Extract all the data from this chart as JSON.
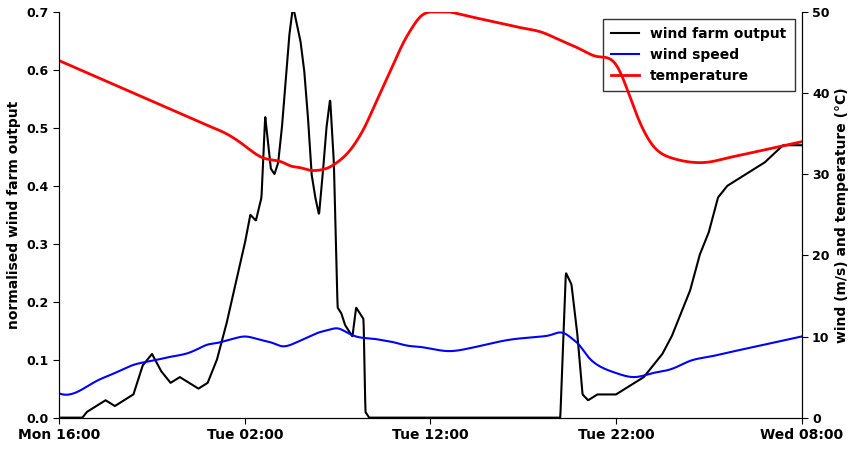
{
  "ylabel_left": "normalised wind farm output",
  "ylabel_right": "wind (m/s) and temperature (°C)",
  "ylim_left": [
    0.0,
    0.7
  ],
  "ylim_right": [
    0,
    50
  ],
  "yticks_left": [
    0.0,
    0.1,
    0.2,
    0.3,
    0.4,
    0.5,
    0.6,
    0.7
  ],
  "yticks_right": [
    0,
    10,
    20,
    30,
    40,
    50
  ],
  "xtick_labels": [
    "Mon 16:00",
    "Tue 02:00",
    "Tue 12:00",
    "Tue 22:00",
    "Wed 08:00"
  ],
  "xtick_positions": [
    0,
    10,
    20,
    30,
    40
  ],
  "xlim": [
    0,
    40
  ],
  "legend_labels": [
    "wind farm output",
    "wind speed",
    "temperature"
  ],
  "wfo_t": [
    0,
    0.5,
    1.0,
    1.5,
    2.0,
    2.5,
    3.0,
    3.5,
    4.0,
    4.5,
    5.0,
    5.5,
    6.0,
    6.5,
    7.0,
    7.5,
    8.0,
    8.5,
    9.0,
    9.5,
    10.0,
    10.3,
    10.6,
    10.9,
    11.1,
    11.4,
    11.6,
    11.8,
    12.0,
    12.2,
    12.4,
    12.6,
    12.8,
    13.0,
    13.2,
    13.4,
    13.6,
    13.8,
    14.0,
    14.2,
    14.4,
    14.6,
    14.8,
    15.0,
    15.2,
    15.4,
    15.6,
    15.8,
    16.0,
    16.2,
    16.4,
    16.5,
    16.7,
    17.0,
    17.5,
    18.0,
    19.0,
    20.0,
    20.5,
    21.0,
    25.0,
    27.0,
    27.3,
    27.6,
    27.9,
    28.2,
    28.5,
    29.0,
    29.5,
    30.0,
    30.5,
    31.0,
    31.5,
    32.0,
    32.5,
    33.0,
    33.5,
    34.0,
    34.5,
    35.0,
    35.5,
    36.0,
    37.0,
    38.0,
    39.0,
    40.0
  ],
  "wfo_y": [
    0.0,
    0.0,
    -0.01,
    0.01,
    0.02,
    0.03,
    0.02,
    0.03,
    0.04,
    0.09,
    0.11,
    0.08,
    0.06,
    0.07,
    0.06,
    0.05,
    0.06,
    0.1,
    0.16,
    0.23,
    0.3,
    0.35,
    0.34,
    0.38,
    0.52,
    0.43,
    0.42,
    0.44,
    0.5,
    0.58,
    0.66,
    0.71,
    0.68,
    0.65,
    0.6,
    0.52,
    0.42,
    0.38,
    0.35,
    0.42,
    0.5,
    0.55,
    0.44,
    0.19,
    0.18,
    0.16,
    0.15,
    0.14,
    0.19,
    0.18,
    0.17,
    0.01,
    0.0,
    0.0,
    0.0,
    0.0,
    0.0,
    0.0,
    0.0,
    0.0,
    0.0,
    0.0,
    0.25,
    0.23,
    0.15,
    0.04,
    0.03,
    0.04,
    0.04,
    0.04,
    0.05,
    0.06,
    0.07,
    0.09,
    0.11,
    0.14,
    0.18,
    0.22,
    0.28,
    0.32,
    0.38,
    0.4,
    0.42,
    0.44,
    0.47,
    0.47
  ],
  "ws_t": [
    0,
    1,
    2,
    3,
    4,
    5,
    6,
    7,
    7.5,
    8,
    8.5,
    9,
    9.5,
    10,
    10.5,
    11,
    11.5,
    12,
    12.5,
    13,
    13.5,
    14,
    14.5,
    15,
    15.5,
    16,
    16.5,
    17,
    17.5,
    18,
    18.5,
    19,
    19.5,
    20,
    20.5,
    21,
    22,
    23,
    24,
    25,
    26,
    26.5,
    27,
    27.3,
    27.6,
    28,
    28.5,
    29,
    30,
    31,
    32,
    33,
    34,
    35,
    36,
    37,
    38,
    39,
    40
  ],
  "ws_y": [
    3,
    3.2,
    4.5,
    5.5,
    6.5,
    7,
    7.5,
    8,
    8.5,
    9,
    9.2,
    9.5,
    9.8,
    10,
    9.8,
    9.5,
    9.2,
    8.8,
    9,
    9.5,
    10,
    10.5,
    10.8,
    11,
    10.5,
    10,
    9.8,
    9.7,
    9.5,
    9.3,
    9.0,
    8.8,
    8.7,
    8.5,
    8.3,
    8.2,
    8.5,
    9,
    9.5,
    9.8,
    10,
    10.2,
    10.5,
    10.3,
    9.8,
    9.0,
    7.5,
    6.5,
    5.5,
    5.0,
    5.5,
    6.0,
    7.0,
    7.5,
    8.0,
    8.5,
    9.0,
    9.5,
    10
  ],
  "temp_t": [
    0,
    0.5,
    1,
    2,
    3,
    4,
    5,
    6,
    7,
    8,
    9,
    10,
    11,
    12,
    12.5,
    13,
    13.5,
    14,
    14.5,
    15,
    15.5,
    16,
    16.5,
    17,
    17.5,
    18,
    18.5,
    19,
    19.5,
    20,
    21,
    22,
    23,
    24,
    25,
    26,
    27,
    28,
    29,
    30,
    31,
    32,
    33,
    34,
    35,
    36,
    37,
    38,
    39,
    40
  ],
  "temp_y": [
    44,
    43.5,
    43,
    42,
    41,
    40,
    39,
    38,
    37,
    36,
    35,
    33.5,
    32,
    31.5,
    31.0,
    30.8,
    30.5,
    30.5,
    30.8,
    31.5,
    32.5,
    34,
    36,
    38.5,
    41,
    43.5,
    46,
    48,
    49.5,
    50,
    50,
    49.5,
    49,
    48.5,
    48,
    47.5,
    46.5,
    45.5,
    44.5,
    43.5,
    38,
    33.5,
    32,
    31.5,
    31.5,
    32,
    32.5,
    33,
    33.5,
    34
  ]
}
